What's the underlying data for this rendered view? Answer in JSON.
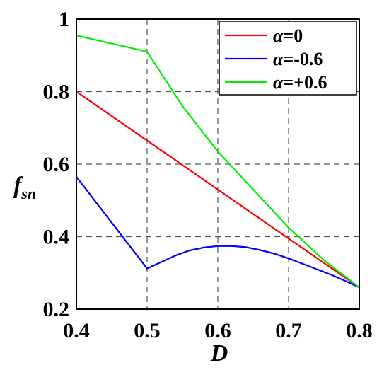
{
  "chart_data": {
    "type": "line",
    "xlabel": "D",
    "ylabel": "f",
    "ylabel_sub": "sn",
    "xlim": [
      0.4,
      0.8
    ],
    "ylim": [
      0.2,
      1.0
    ],
    "xticks": [
      "0.4",
      "0.5",
      "0.6",
      "0.7",
      "0.8"
    ],
    "yticks": [
      "0.2",
      "0.4",
      "0.6",
      "0.8",
      "1"
    ],
    "grid": true,
    "legend_position": "top-right",
    "series": [
      {
        "name": "α=0",
        "color": "#ff0000",
        "x": [
          0.4,
          0.5,
          0.6,
          0.7,
          0.8
        ],
        "y": [
          0.8,
          0.665,
          0.53,
          0.395,
          0.26
        ]
      },
      {
        "name": "α=-0.6",
        "color": "#0000ff",
        "x": [
          0.4,
          0.5,
          0.52,
          0.54,
          0.56,
          0.58,
          0.6,
          0.62,
          0.64,
          0.66,
          0.68,
          0.7,
          0.72,
          0.74,
          0.76,
          0.78,
          0.8
        ],
        "y": [
          0.565,
          0.312,
          0.33,
          0.348,
          0.362,
          0.37,
          0.374,
          0.374,
          0.371,
          0.363,
          0.353,
          0.34,
          0.325,
          0.31,
          0.295,
          0.278,
          0.26
        ]
      },
      {
        "name": "α=+0.6",
        "color": "#00ee00",
        "x": [
          0.4,
          0.5,
          0.55,
          0.6,
          0.65,
          0.7,
          0.75,
          0.8
        ],
        "y": [
          0.955,
          0.91,
          0.76,
          0.635,
          0.53,
          0.425,
          0.335,
          0.26
        ]
      }
    ]
  }
}
